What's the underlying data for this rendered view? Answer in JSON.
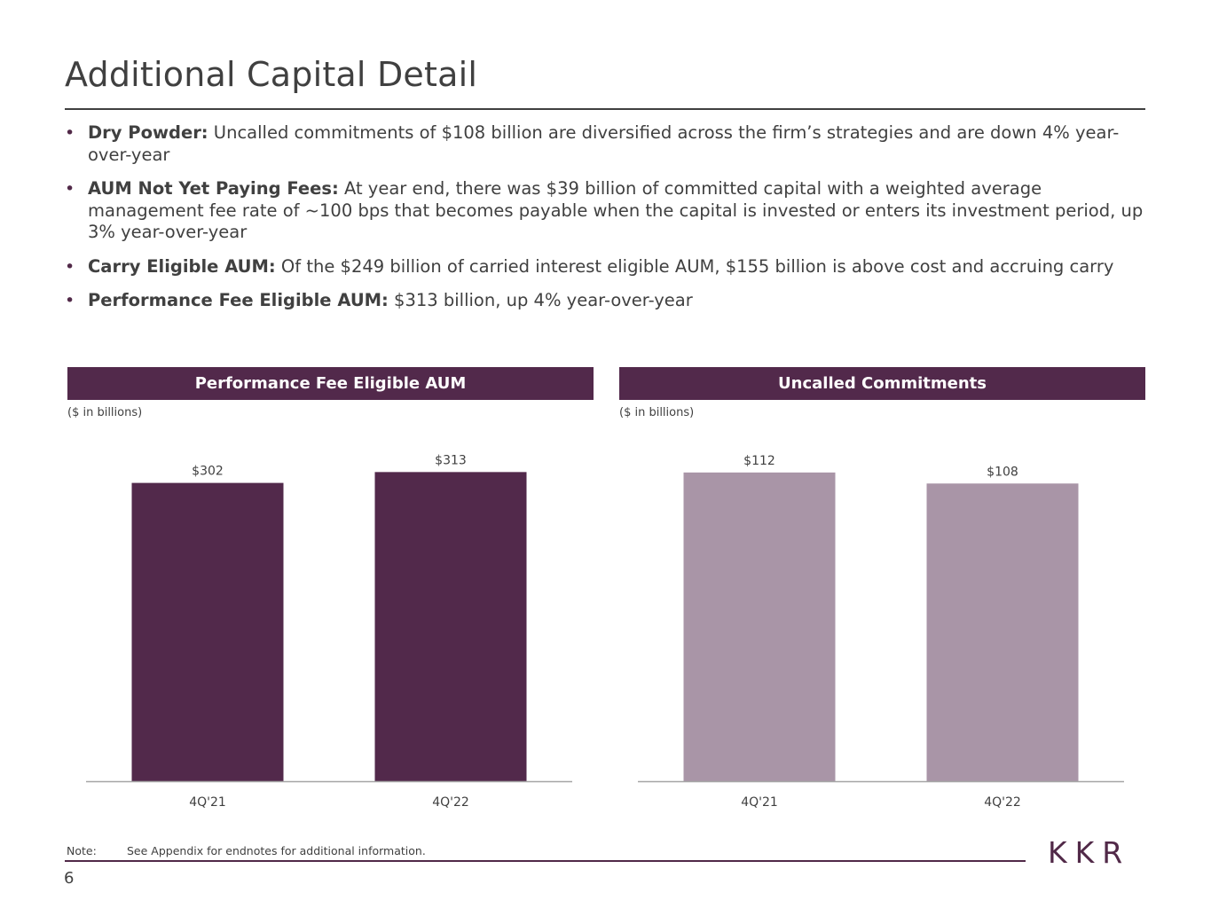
{
  "page": {
    "title": "Additional Capital Detail",
    "page_number": "6",
    "logo": "KKR",
    "note_label": "Note:",
    "note_text": "See Appendix for endnotes for additional information."
  },
  "bullets": [
    {
      "label": "Dry Powder:",
      "text": " Uncalled commitments of $108 billion are diversified across the firm’s strategies and are down 4% year-over-year"
    },
    {
      "label": "AUM Not Yet Paying Fees:",
      "text": " At year end, there was $39 billion of committed capital with a weighted average management fee rate of ~100 bps that becomes payable when the capital is invested or enters its investment period, up 3% year-over-year"
    },
    {
      "label": "Carry Eligible AUM:",
      "text": " Of the $249 billion of carried interest eligible AUM, $155 billion is above cost and accruing carry"
    },
    {
      "label": "Performance Fee Eligible AUM:",
      "text": " $313 billion, up 4% year-over-year"
    }
  ],
  "colors": {
    "dark_plum": "#52294b",
    "light_plum": "#a995a7",
    "text": "#404040"
  },
  "chart_data": [
    {
      "type": "bar",
      "title": "Performance Fee Eligible AUM",
      "units_note": "($ in billions)",
      "categories": [
        "4Q'21",
        "4Q'22"
      ],
      "values": [
        302,
        313
      ],
      "value_labels": [
        "$302",
        "$313"
      ],
      "bar_color": "#52294b",
      "ylim": [
        0,
        360
      ],
      "grid": false
    },
    {
      "type": "bar",
      "title": "Uncalled Commitments",
      "units_note": "($ in billions)",
      "categories": [
        "4Q'21",
        "4Q'22"
      ],
      "values": [
        112,
        108
      ],
      "value_labels": [
        "$112",
        "$108"
      ],
      "bar_color": "#a995a7",
      "ylim": [
        0,
        129
      ],
      "grid": false
    }
  ]
}
